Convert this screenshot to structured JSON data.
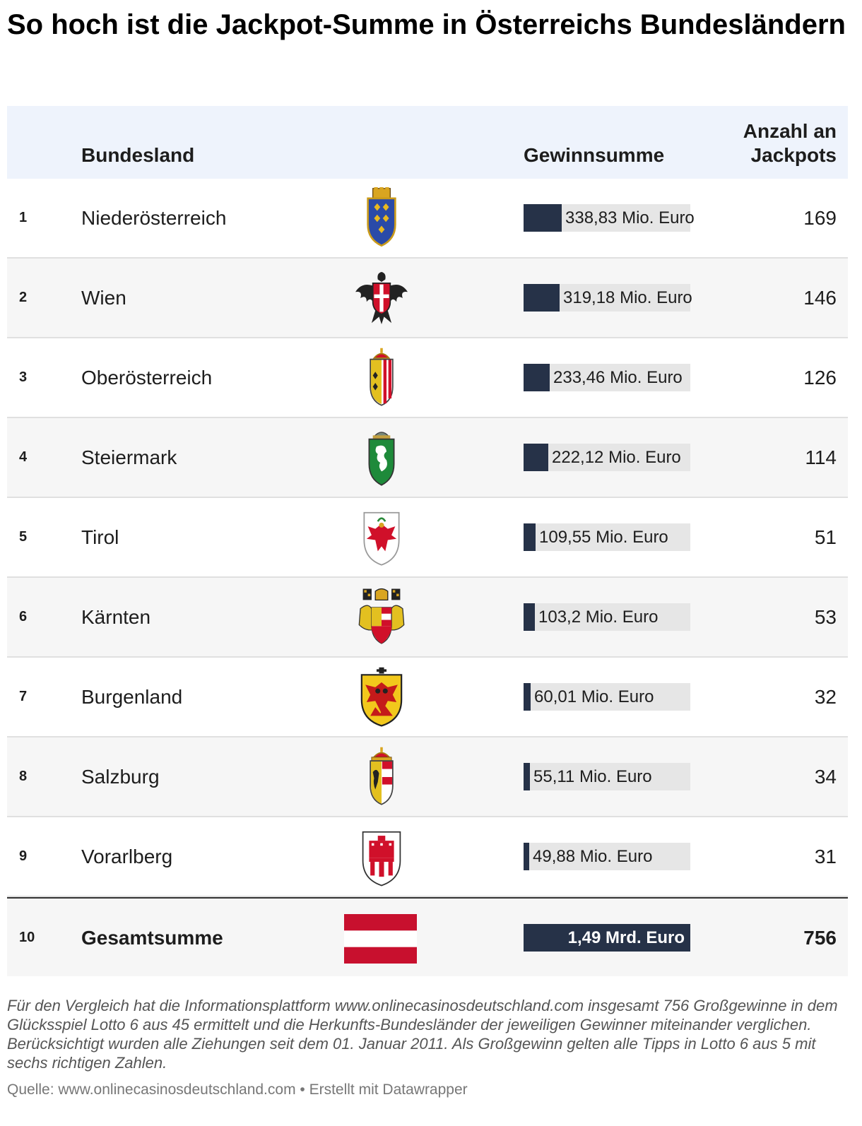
{
  "title": "So hoch ist die Jackpot-Summe in Österreichs Bundesländern",
  "header": {
    "col_land": "Bundesland",
    "col_sum": "Gewinnsumme",
    "col_count": "Anzahl an Jackpots"
  },
  "rows": [
    {
      "rank": "1",
      "land": "Niederösterreich",
      "crest": "niederoesterreich-crest-icon",
      "sum_label": "338,83 Mio. Euro",
      "sum": 338.83,
      "count": "169"
    },
    {
      "rank": "2",
      "land": "Wien",
      "crest": "wien-crest-icon",
      "sum_label": "319,18 Mio. Euro",
      "sum": 319.18,
      "count": "146"
    },
    {
      "rank": "3",
      "land": "Oberösterreich",
      "crest": "oberoesterreich-crest-icon",
      "sum_label": "233,46 Mio. Euro",
      "sum": 233.46,
      "count": "126"
    },
    {
      "rank": "4",
      "land": "Steiermark",
      "crest": "steiermark-crest-icon",
      "sum_label": "222,12 Mio. Euro",
      "sum": 222.12,
      "count": "114"
    },
    {
      "rank": "5",
      "land": "Tirol",
      "crest": "tirol-crest-icon",
      "sum_label": "109,55 Mio. Euro",
      "sum": 109.55,
      "count": "51"
    },
    {
      "rank": "6",
      "land": "Kärnten",
      "crest": "kaernten-crest-icon",
      "sum_label": "103,2 Mio. Euro",
      "sum": 103.2,
      "count": "53"
    },
    {
      "rank": "7",
      "land": "Burgenland",
      "crest": "burgenland-crest-icon",
      "sum_label": "60,01 Mio. Euro",
      "sum": 60.01,
      "count": "32"
    },
    {
      "rank": "8",
      "land": "Salzburg",
      "crest": "salzburg-crest-icon",
      "sum_label": "55,11 Mio. Euro",
      "sum": 55.11,
      "count": "34"
    },
    {
      "rank": "9",
      "land": "Vorarlberg",
      "crest": "vorarlberg-crest-icon",
      "sum_label": "49,88 Mio. Euro",
      "sum": 49.88,
      "count": "31"
    }
  ],
  "total": {
    "rank": "10",
    "land": "Gesamtsumme",
    "flag": "austria-flag-icon",
    "sum_label": "1,49 Mrd. Euro",
    "sum": 1490,
    "count": "756"
  },
  "note": "Für den Vergleich hat die Informationsplattform www.onlinecasinosdeutschland.com insgesamt 756 Großgewinne in dem Glücksspiel Lotto 6 aus 45 ermittelt und die Herkunfts-Bundesländer der jeweiligen Gewinner miteinander verglichen. Berücksichtigt wurden alle Ziehungen seit dem 01. Januar 2011. Als Großgewinn gelten alle Tipps in Lotto 6 aus 5 mit sechs richtigen Zahlen.",
  "source": "Quelle: www.onlinecasinosdeutschland.com • Erstellt mit Datawrapper",
  "colors": {
    "bar": "#263248",
    "bar_background": "#e6e6e6",
    "header_background": "#eef3fc",
    "row_alt": "#f6f6f6",
    "flag_red": "#c8102e"
  },
  "chart_data": {
    "type": "table",
    "columns": [
      "Bundesland",
      "Gewinnsumme",
      "Anzahl an Jackpots"
    ],
    "categories": [
      "Niederösterreich",
      "Wien",
      "Oberösterreich",
      "Steiermark",
      "Tirol",
      "Kärnten",
      "Burgenland",
      "Salzburg",
      "Vorarlberg",
      "Gesamtsumme"
    ],
    "series": [
      {
        "name": "Gewinnsumme",
        "values": [
          338.83,
          319.18,
          233.46,
          222.12,
          109.55,
          103.2,
          60.01,
          55.11,
          49.88,
          1490
        ]
      },
      {
        "name": "Anzahl an Jackpots",
        "values": [
          169,
          146,
          126,
          114,
          51,
          53,
          32,
          34,
          31,
          756
        ]
      }
    ],
    "bar_max": 1490
  }
}
